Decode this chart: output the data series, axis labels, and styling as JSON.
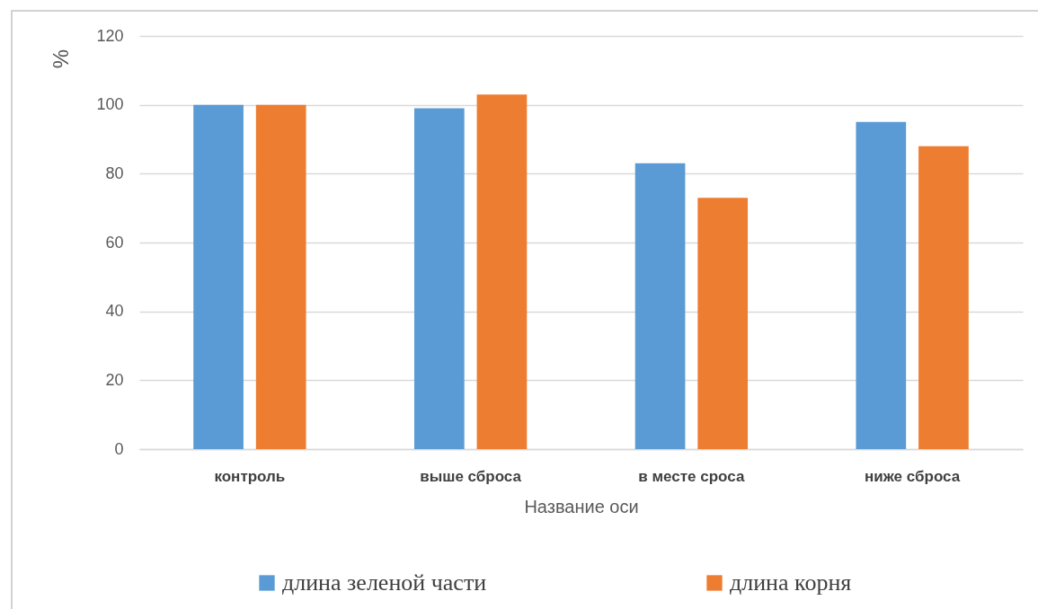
{
  "chart_data": {
    "type": "bar",
    "xlabel": "Название оси",
    "ylabel": "%",
    "categories": [
      "контроль",
      "выше сброса",
      "в месте сроса",
      "ниже сброса"
    ],
    "series": [
      {
        "name": "длина зеленой части",
        "color": "#5b9bd5",
        "values": [
          100,
          99,
          83,
          95
        ]
      },
      {
        "name": "длина корня",
        "color": "#ed7d31",
        "values": [
          100,
          103,
          73,
          88
        ]
      }
    ],
    "ylim": [
      0,
      120
    ],
    "yticks": [
      0,
      20,
      40,
      60,
      80,
      100,
      120
    ],
    "grid": "y",
    "legend": "bottom"
  }
}
